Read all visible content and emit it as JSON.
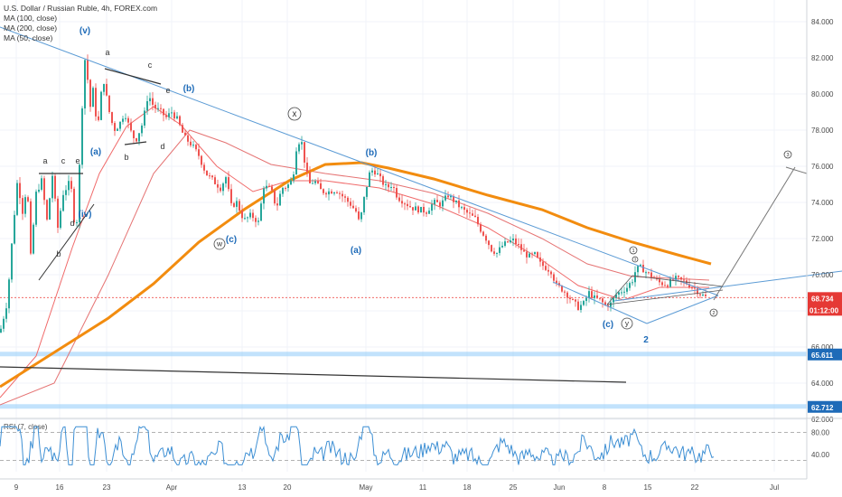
{
  "header": {
    "title": "U.S. Dollar / Russian Ruble, 4h, FOREX.com",
    "indicators": [
      "MA (100, close)",
      "MA (200, close)",
      "MA (50, close)"
    ]
  },
  "rsi_title": "RSI (7, close)",
  "price_tags": [
    {
      "value": "68.734",
      "sub": "01:12:00",
      "color": "#e53935"
    },
    {
      "value": "65.611",
      "color": "#1e6bb8"
    },
    {
      "value": "62.712",
      "color": "#1e6bb8"
    }
  ],
  "wave_labels": {
    "blue": [
      "(v)",
      "(b)",
      "(a)",
      "(iv)",
      "(c)",
      "(b)",
      "(a)",
      "(c)",
      "2"
    ],
    "black": [
      "a",
      "c",
      "e",
      "b",
      "d",
      "a",
      "c",
      "e",
      "b",
      "d"
    ],
    "circled": [
      "x",
      "w",
      "y",
      "1",
      "3",
      "2",
      "3"
    ]
  },
  "colors": {
    "up": "#26a69a",
    "down": "#ef5350",
    "ma50": "#f06a6a",
    "ma100": "#e57373",
    "ma200": "#f28c0f",
    "trend": "#5b9bd5",
    "support": "#90caf9"
  },
  "chart_data": {
    "type": "candlestick",
    "symbol": "U.S. Dollar / Russian Ruble",
    "timeframe": "4h",
    "y_ticks": [
      84.0,
      82.0,
      80.0,
      78.0,
      76.0,
      74.0,
      72.0,
      70.0,
      68.0,
      66.0,
      64.0,
      62.0
    ],
    "y_tick_labels": [
      "84.000",
      "82.000",
      "80.000",
      "78.000",
      "76.000",
      "74.000",
      "72.000",
      "70.000",
      "68.000",
      "66.000",
      "64.000",
      "62.000"
    ],
    "ylim": [
      61.8,
      85.4
    ],
    "x_ticks": [
      "9",
      "16",
      "23",
      "Apr",
      "13",
      "20",
      "May",
      "11",
      "18",
      "25",
      "Jun",
      "8",
      "15",
      "22",
      "Jul"
    ],
    "close_path": [
      [
        0,
        66.8
      ],
      [
        8,
        68.5
      ],
      [
        14,
        72.3
      ],
      [
        20,
        75.6
      ],
      [
        24,
        73.2
      ],
      [
        30,
        75.0
      ],
      [
        34,
        71.0
      ],
      [
        40,
        74.5
      ],
      [
        46,
        75.2
      ],
      [
        52,
        73.0
      ],
      [
        58,
        75.5
      ],
      [
        64,
        72.6
      ],
      [
        70,
        74.5
      ],
      [
        78,
        75.2
      ],
      [
        84,
        72.0
      ],
      [
        88,
        76.0
      ],
      [
        92,
        80.5
      ],
      [
        95,
        82.6
      ],
      [
        99,
        79.0
      ],
      [
        103,
        80.2
      ],
      [
        108,
        78.0
      ],
      [
        114,
        81.0
      ],
      [
        120,
        79.2
      ],
      [
        126,
        78.0
      ],
      [
        132,
        78.3
      ],
      [
        138,
        79.0
      ],
      [
        144,
        78.0
      ],
      [
        150,
        77.4
      ],
      [
        158,
        78.4
      ],
      [
        164,
        80.0
      ],
      [
        170,
        79.3
      ],
      [
        178,
        79.0
      ],
      [
        184,
        78.7
      ],
      [
        190,
        79.0
      ],
      [
        196,
        78.6
      ],
      [
        204,
        77.6
      ],
      [
        212,
        77.2
      ],
      [
        220,
        76.6
      ],
      [
        228,
        75.6
      ],
      [
        236,
        75.2
      ],
      [
        244,
        74.8
      ],
      [
        250,
        75.4
      ],
      [
        256,
        73.8
      ],
      [
        262,
        74.0
      ],
      [
        270,
        73.0
      ],
      [
        278,
        73.3
      ],
      [
        286,
        72.9
      ],
      [
        292,
        74.9
      ],
      [
        300,
        74.7
      ],
      [
        306,
        73.7
      ],
      [
        312,
        74.8
      ],
      [
        318,
        74.9
      ],
      [
        324,
        75.3
      ],
      [
        328,
        77.0
      ],
      [
        333,
        77.6
      ],
      [
        338,
        76.0
      ],
      [
        342,
        75.0
      ],
      [
        348,
        75.2
      ],
      [
        356,
        74.6
      ],
      [
        364,
        74.6
      ],
      [
        372,
        74.7
      ],
      [
        380,
        74.3
      ],
      [
        388,
        73.9
      ],
      [
        394,
        73.5
      ],
      [
        398,
        72.8
      ],
      [
        404,
        74.5
      ],
      [
        410,
        75.8
      ],
      [
        416,
        75.7
      ],
      [
        422,
        75.2
      ],
      [
        428,
        74.8
      ],
      [
        434,
        75.0
      ],
      [
        440,
        74.3
      ],
      [
        448,
        74.0
      ],
      [
        456,
        73.7
      ],
      [
        464,
        73.6
      ],
      [
        472,
        73.5
      ],
      [
        480,
        74.0
      ],
      [
        488,
        73.9
      ],
      [
        496,
        74.4
      ],
      [
        504,
        74.0
      ],
      [
        512,
        73.6
      ],
      [
        520,
        73.3
      ],
      [
        526,
        73.1
      ],
      [
        532,
        72.5
      ],
      [
        538,
        72.0
      ],
      [
        544,
        71.4
      ],
      [
        550,
        71.2
      ],
      [
        556,
        71.6
      ],
      [
        562,
        71.8
      ],
      [
        568,
        71.9
      ],
      [
        574,
        71.6
      ],
      [
        580,
        71.2
      ],
      [
        586,
        71.0
      ],
      [
        592,
        71.1
      ],
      [
        598,
        70.6
      ],
      [
        604,
        70.4
      ],
      [
        610,
        70.2
      ],
      [
        616,
        69.4
      ],
      [
        622,
        69.2
      ],
      [
        628,
        68.9
      ],
      [
        634,
        68.5
      ],
      [
        640,
        68.2
      ],
      [
        646,
        68.4
      ],
      [
        652,
        69.0
      ],
      [
        658,
        68.7
      ],
      [
        664,
        68.6
      ],
      [
        670,
        68.3
      ],
      [
        676,
        68.4
      ],
      [
        682,
        68.9
      ],
      [
        688,
        69.1
      ],
      [
        694,
        69.3
      ],
      [
        700,
        69.7
      ],
      [
        704,
        70.3
      ],
      [
        710,
        70.4
      ],
      [
        716,
        70.1
      ],
      [
        722,
        69.9
      ],
      [
        728,
        69.6
      ],
      [
        734,
        69.5
      ],
      [
        740,
        69.5
      ],
      [
        746,
        69.8
      ],
      [
        752,
        69.7
      ],
      [
        758,
        69.6
      ],
      [
        764,
        69.4
      ],
      [
        770,
        69.2
      ],
      [
        776,
        68.9
      ],
      [
        782,
        68.73
      ]
    ],
    "ma50": [
      [
        0,
        63.2
      ],
      [
        40,
        65.5
      ],
      [
        80,
        71.5
      ],
      [
        110,
        75.6
      ],
      [
        140,
        78.2
      ],
      [
        170,
        79.3
      ],
      [
        200,
        78.3
      ],
      [
        240,
        76.0
      ],
      [
        280,
        74.6
      ],
      [
        320,
        75.2
      ],
      [
        360,
        75.2
      ],
      [
        420,
        74.8
      ],
      [
        480,
        73.9
      ],
      [
        540,
        72.6
      ],
      [
        600,
        70.8
      ],
      [
        640,
        69.4
      ],
      [
        690,
        68.6
      ],
      [
        730,
        69.3
      ],
      [
        785,
        69.3
      ]
    ],
    "ma100": [
      [
        0,
        62.8
      ],
      [
        60,
        64.0
      ],
      [
        120,
        70.0
      ],
      [
        170,
        75.6
      ],
      [
        210,
        78.0
      ],
      [
        250,
        77.3
      ],
      [
        300,
        76.1
      ],
      [
        360,
        75.6
      ],
      [
        420,
        75.2
      ],
      [
        480,
        74.5
      ],
      [
        540,
        73.4
      ],
      [
        600,
        72.0
      ],
      [
        650,
        70.6
      ],
      [
        700,
        69.9
      ],
      [
        785,
        69.7
      ]
    ],
    "ma200": [
      [
        0,
        63.8
      ],
      [
        60,
        65.7
      ],
      [
        120,
        67.6
      ],
      [
        170,
        69.5
      ],
      [
        220,
        71.8
      ],
      [
        270,
        73.6
      ],
      [
        320,
        75.2
      ],
      [
        360,
        76.1
      ],
      [
        400,
        76.2
      ],
      [
        430,
        75.9
      ],
      [
        480,
        75.3
      ],
      [
        540,
        74.4
      ],
      [
        600,
        73.6
      ],
      [
        650,
        72.6
      ],
      [
        700,
        71.8
      ],
      [
        750,
        71.1
      ],
      [
        787,
        70.6
      ]
    ],
    "rsi": {
      "label": "RSI (7, close)",
      "y_ticks": [
        "80.00",
        "40.00"
      ],
      "bands": [
        80,
        30
      ]
    }
  }
}
